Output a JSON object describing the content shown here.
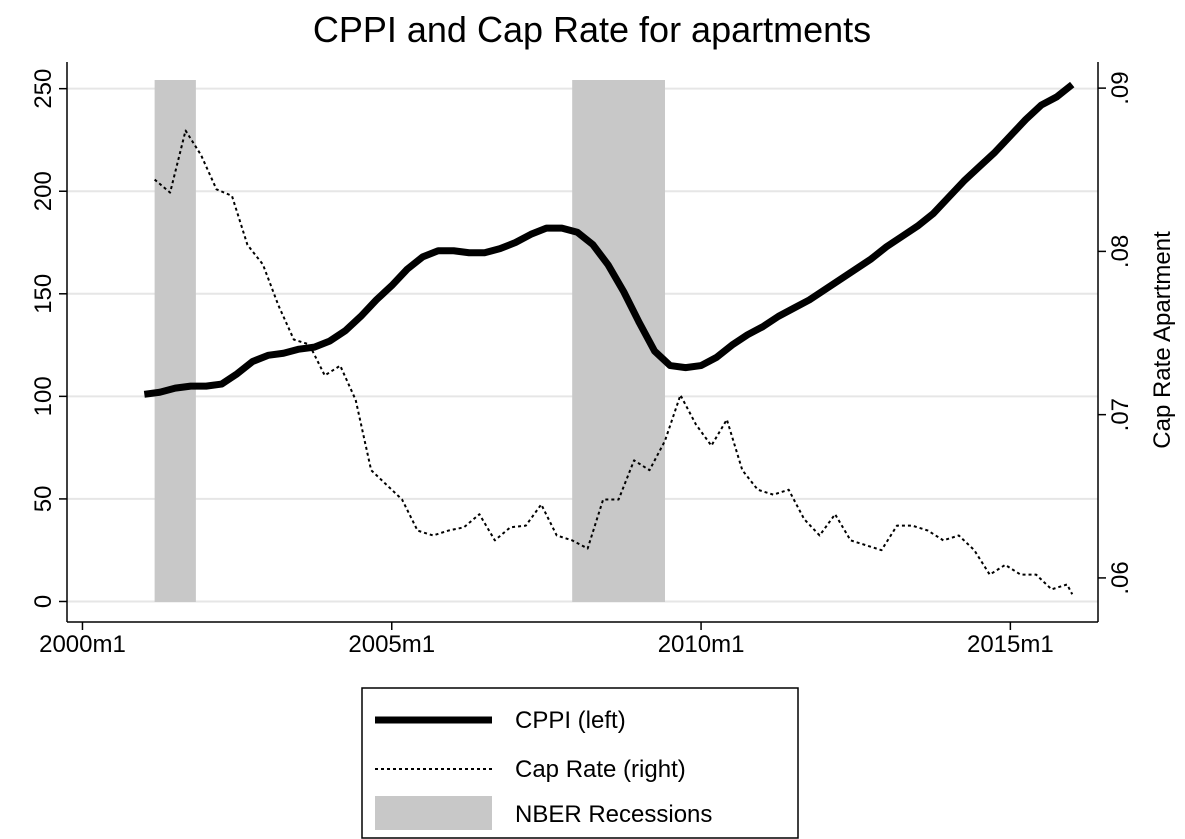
{
  "chart_data": {
    "type": "line",
    "title": "CPPI and Cap Rate for apartments",
    "y2_label": "Cap Rate Apartment",
    "xlim": [
      477,
      677
    ],
    "xticks": [
      {
        "value": 480,
        "label": "2000m1"
      },
      {
        "value": 540,
        "label": "2005m1"
      },
      {
        "value": 600,
        "label": "2010m1"
      },
      {
        "value": 660,
        "label": "2015m1"
      }
    ],
    "ylim": [
      -10,
      263
    ],
    "yticks": [
      0,
      50,
      100,
      150,
      200,
      250
    ],
    "y2lim": [
      0.0573,
      0.0916
    ],
    "y2ticks": [
      {
        "value": 0.06,
        "label": ".06"
      },
      {
        "value": 0.07,
        "label": ".07"
      },
      {
        "value": 0.08,
        "label": ".08"
      },
      {
        "value": 0.09,
        "label": ".09"
      }
    ],
    "grid": true,
    "legend": "bottom",
    "shaded_ranges": {
      "name": "NBER Recessions",
      "color": "#c8c8c8",
      "ranges": [
        [
          494,
          502
        ],
        [
          575,
          593
        ]
      ]
    },
    "series": [
      {
        "name": "CPPI (left)",
        "color": "#000000",
        "style": "solid",
        "x": [
          492,
          495,
          498,
          501,
          504,
          507,
          510,
          513,
          516,
          519,
          522,
          525,
          528,
          531,
          534,
          537,
          540,
          543,
          546,
          549,
          552,
          555,
          558,
          561,
          564,
          567,
          570,
          573,
          576,
          579,
          582,
          585,
          588,
          591,
          594,
          597,
          600,
          603,
          606,
          609,
          612,
          615,
          618,
          621,
          624,
          627,
          630,
          633,
          636,
          639,
          642,
          645,
          648,
          651,
          654,
          657,
          660,
          663,
          666,
          669,
          672
        ],
        "values": [
          101,
          102,
          104,
          105,
          105,
          106,
          111,
          117,
          120,
          121,
          123,
          124,
          127,
          132,
          139,
          147,
          154,
          162,
          168,
          171,
          171,
          170,
          170,
          172,
          175,
          179,
          182,
          182,
          180,
          174,
          164,
          151,
          136,
          122,
          115,
          114,
          115,
          119,
          125,
          130,
          134,
          139,
          143,
          147,
          152,
          157,
          162,
          167,
          173,
          178,
          183,
          189,
          197,
          205,
          212,
          219,
          227,
          235,
          242,
          246,
          252
        ]
      },
      {
        "name": "Cap Rate (right)",
        "color": "#000000",
        "style": "dotted",
        "axis": "y2",
        "x": [
          494,
          497,
          500,
          503,
          506,
          509,
          512,
          515,
          518,
          521,
          524,
          527,
          530,
          533,
          536,
          539,
          542,
          545,
          548,
          551,
          554,
          557,
          560,
          563,
          566,
          569,
          572,
          575,
          578,
          581,
          584,
          587,
          590,
          593,
          596,
          599,
          602,
          605,
          608,
          611,
          614,
          617,
          620,
          623,
          626,
          629,
          632,
          635,
          638,
          641,
          644,
          647,
          650,
          653,
          656,
          659,
          662,
          665,
          668,
          671,
          672
        ],
        "values": [
          0.0844,
          0.0836,
          0.0874,
          0.0859,
          0.0838,
          0.0834,
          0.0804,
          0.0792,
          0.0767,
          0.0746,
          0.0743,
          0.0724,
          0.073,
          0.0709,
          0.0666,
          0.0657,
          0.0648,
          0.0629,
          0.0626,
          0.0629,
          0.0631,
          0.0639,
          0.0623,
          0.0631,
          0.0632,
          0.0645,
          0.0626,
          0.0623,
          0.0618,
          0.0648,
          0.0648,
          0.0672,
          0.0666,
          0.0684,
          0.0712,
          0.0694,
          0.0681,
          0.0697,
          0.0666,
          0.0654,
          0.0651,
          0.0654,
          0.0636,
          0.0626,
          0.0639,
          0.0623,
          0.062,
          0.0617,
          0.0632,
          0.0632,
          0.0629,
          0.0623,
          0.0626,
          0.0617,
          0.0602,
          0.0608,
          0.0602,
          0.0602,
          0.0593,
          0.0596,
          0.059
        ]
      }
    ]
  }
}
